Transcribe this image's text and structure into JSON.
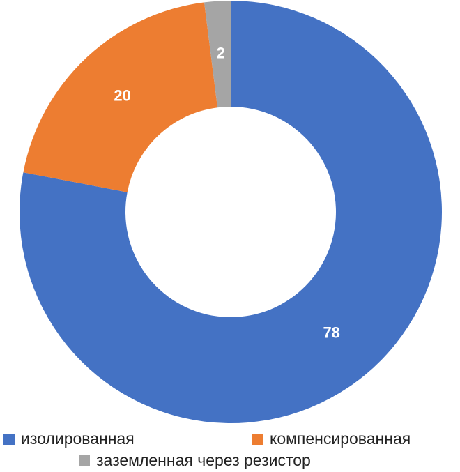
{
  "chart_data": {
    "type": "donut",
    "categories": [
      "изолированная",
      "компенсированная",
      "заземленная через резистор"
    ],
    "values": [
      78,
      20,
      2
    ],
    "colors": [
      "#4472c4",
      "#ed7d31",
      "#a5a5a5"
    ],
    "legend": "bottom"
  }
}
